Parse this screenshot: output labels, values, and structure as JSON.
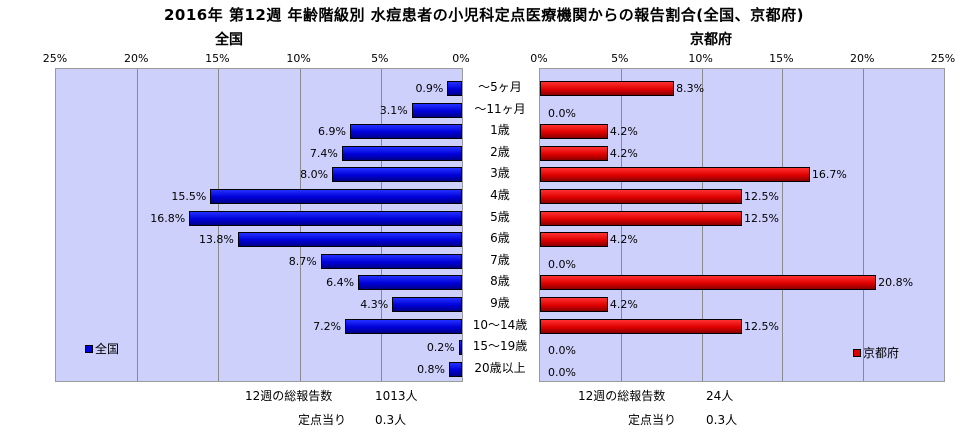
{
  "title": "2016年 第12週 年齢階級別 水痘患者の小児科定点医療機関からの報告割合(全国、京都府)",
  "left_panel_title": "全国",
  "right_panel_title": "京都府",
  "left_ticks": [
    "25%",
    "20%",
    "15%",
    "10%",
    "5%",
    "0%"
  ],
  "right_ticks": [
    "0%",
    "5%",
    "10%",
    "15%",
    "20%",
    "25%"
  ],
  "colors": {
    "national": "#0000dd",
    "kyoto": "#dd0000",
    "plot_bg": "#cdd0fb"
  },
  "chart_data": [
    {
      "type": "bar",
      "orientation": "horizontal",
      "direction": "right-to-left",
      "title": "全国",
      "series": [
        {
          "name": "全国",
          "values": [
            0.9,
            3.1,
            6.9,
            7.4,
            8.0,
            15.5,
            16.8,
            13.8,
            8.7,
            6.4,
            4.3,
            7.2,
            0.2,
            0.8
          ],
          "labels": [
            "0.9%",
            "3.1%",
            "6.9%",
            "7.4%",
            "8.0%",
            "15.5%",
            "16.8%",
            "13.8%",
            "8.7%",
            "6.4%",
            "4.3%",
            "7.2%",
            "0.2%",
            "0.8%"
          ]
        }
      ],
      "categories": [
        "～5ヶ月",
        "～11ヶ月",
        "1歳",
        "2歳",
        "3歳",
        "4歳",
        "5歳",
        "6歳",
        "7歳",
        "8歳",
        "9歳",
        "10～14歳",
        "15～19歳",
        "20歳以上"
      ],
      "xlim": [
        0,
        25
      ],
      "unit": "%",
      "legend": "bottom-left",
      "grid": true
    },
    {
      "type": "bar",
      "orientation": "horizontal",
      "title": "京都府",
      "series": [
        {
          "name": "京都府",
          "values": [
            8.3,
            0.0,
            4.2,
            4.2,
            16.7,
            12.5,
            12.5,
            4.2,
            0.0,
            20.8,
            4.2,
            12.5,
            0.0,
            0.0
          ],
          "labels": [
            "8.3%",
            "0.0%",
            "4.2%",
            "4.2%",
            "16.7%",
            "12.5%",
            "12.5%",
            "4.2%",
            "0.0%",
            "20.8%",
            "4.2%",
            "12.5%",
            "0.0%",
            "0.0%"
          ]
        }
      ],
      "categories": [
        "～5ヶ月",
        "～11ヶ月",
        "1歳",
        "2歳",
        "3歳",
        "4歳",
        "5歳",
        "6歳",
        "7歳",
        "8歳",
        "9歳",
        "10～14歳",
        "15～19歳",
        "20歳以上"
      ],
      "xlim": [
        0,
        25
      ],
      "unit": "%",
      "legend": "bottom-right",
      "grid": true
    }
  ],
  "footer": {
    "left_total_label": "12週の総報告数",
    "left_total_value": "1013人",
    "left_per_label": "定点当り",
    "left_per_value": "0.3人",
    "right_total_label": "12週の総報告数",
    "right_total_value": "24人",
    "right_per_label": "定点当り",
    "right_per_value": "0.3人"
  }
}
